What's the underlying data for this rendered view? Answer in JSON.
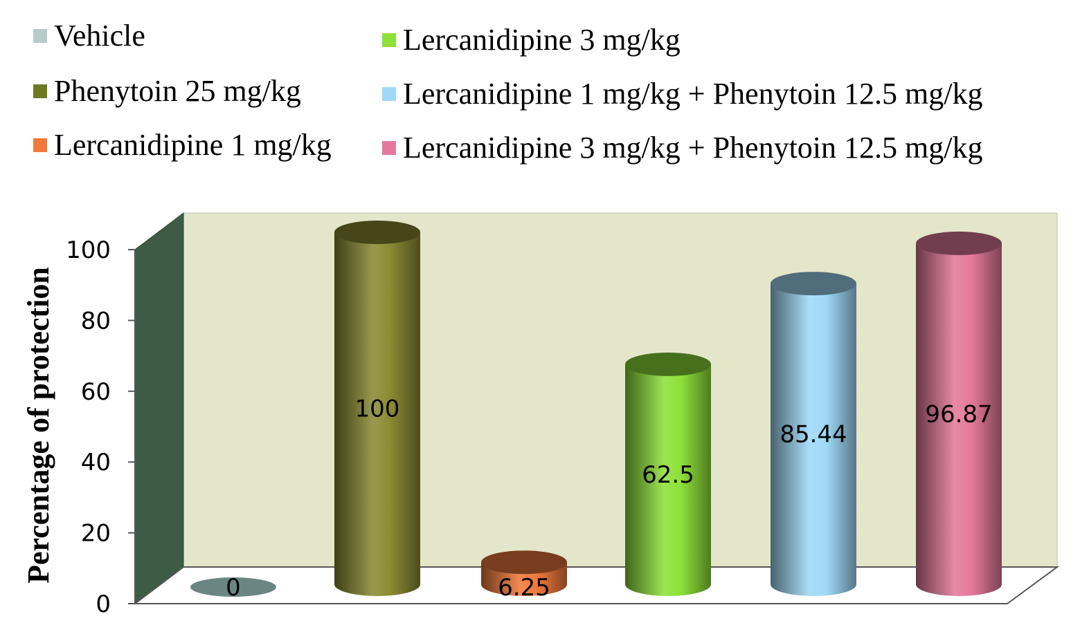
{
  "chart_data": {
    "type": "bar",
    "style": "3d-cylinder",
    "title": "",
    "xlabel": "",
    "ylabel": "Percentage of protection",
    "ylim": [
      0,
      100
    ],
    "yticks": [
      "0",
      "20",
      "40",
      "60",
      "80",
      "100"
    ],
    "grid": false,
    "legend_position": "top",
    "series": [
      {
        "name": "Vehicle",
        "value": 0,
        "label": "0",
        "color": "#B9CACA"
      },
      {
        "name": "Phenytoin 25 mg/kg",
        "value": 100,
        "label": "100",
        "color": "#8B8B34"
      },
      {
        "name": "Lercanidipine 1 mg/kg",
        "value": 6.25,
        "label": "6.25",
        "color": "#F07A3C"
      },
      {
        "name": "Lercanidipine 3 mg/kg",
        "value": 62.5,
        "label": "62.5",
        "color": "#8EE03A"
      },
      {
        "name": "Lercanidipine 1 mg/kg + Phenytoin 12.5 mg/kg",
        "value": 85.44,
        "label": "85.44",
        "color": "#9FD9F7"
      },
      {
        "name": "Lercanidipine 3 mg/kg + Phenytoin 12.5 mg/kg",
        "value": 96.87,
        "label": "96.87",
        "color": "#E4799B"
      }
    ]
  }
}
